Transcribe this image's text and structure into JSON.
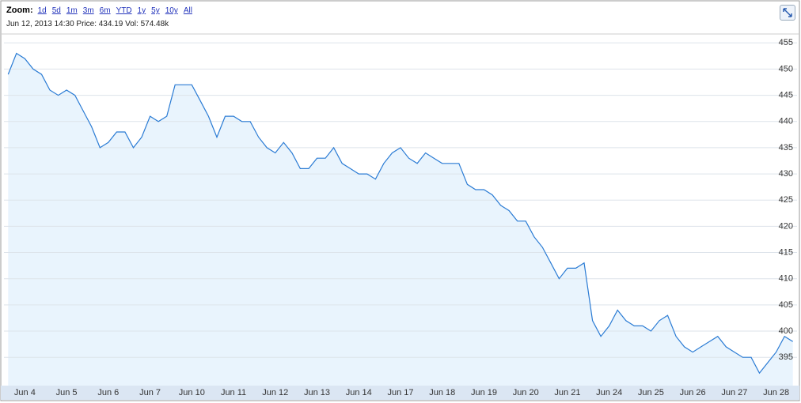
{
  "toolbar": {
    "zoom_label": "Zoom:",
    "links": [
      "1d",
      "5d",
      "1m",
      "3m",
      "6m",
      "YTD",
      "1y",
      "5y",
      "10y",
      "All"
    ],
    "status": "Jun 12, 2013 14:30 Price: 434.19 Vol: 574.48k"
  },
  "chart_data": {
    "type": "line",
    "categories": [
      null,
      null,
      "Jun 4",
      null,
      null,
      null,
      null,
      "Jun 5",
      null,
      null,
      null,
      null,
      "Jun 6",
      null,
      null,
      null,
      null,
      "Jun 7",
      null,
      null,
      null,
      null,
      "Jun 10",
      null,
      null,
      null,
      null,
      "Jun 11",
      null,
      null,
      null,
      null,
      "Jun 12",
      null,
      null,
      null,
      null,
      "Jun 13",
      null,
      null,
      null,
      null,
      "Jun 14",
      null,
      null,
      null,
      null,
      "Jun 17",
      null,
      null,
      null,
      null,
      "Jun 18",
      null,
      null,
      null,
      null,
      "Jun 19",
      null,
      null,
      null,
      null,
      "Jun 20",
      null,
      null,
      null,
      null,
      "Jun 21",
      null,
      null,
      null,
      null,
      "Jun 24",
      null,
      null,
      null,
      null,
      "Jun 25",
      null,
      null,
      null,
      null,
      "Jun 26",
      null,
      null,
      null,
      null,
      "Jun 27",
      null,
      null,
      null,
      null,
      "Jun 28",
      null,
      null
    ],
    "series": [
      {
        "color": "#2a7bd4",
        "values": [
          449,
          453,
          452,
          450,
          449,
          446,
          445,
          446,
          445,
          442,
          439,
          435,
          436,
          438,
          438,
          435,
          437,
          441,
          440,
          441,
          447,
          447,
          447,
          444,
          441,
          437,
          441,
          441,
          440,
          440,
          437,
          435,
          434,
          436,
          434,
          431,
          431,
          433,
          433,
          435,
          432,
          431,
          430,
          430,
          429,
          432,
          434,
          435,
          433,
          432,
          434,
          433,
          432,
          432,
          432,
          428,
          427,
          427,
          426,
          424,
          423,
          421,
          421,
          418,
          416,
          413,
          410,
          412,
          412,
          413,
          402,
          399,
          401,
          404,
          402,
          401,
          401,
          400,
          402,
          403,
          399,
          397,
          396,
          397,
          398,
          399,
          397,
          396,
          395,
          395,
          392,
          394,
          396,
          399,
          398
        ]
      }
    ],
    "ylim": [
      389.6,
      456.7
    ],
    "yticks": [
      395,
      400,
      405,
      410,
      415,
      420,
      425,
      430,
      435,
      440,
      445,
      450,
      455
    ],
    "grid": true,
    "area_color": "#e9f4fd"
  }
}
